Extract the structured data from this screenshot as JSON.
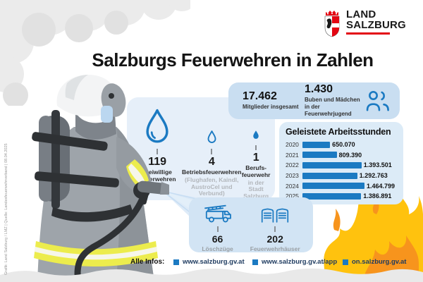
{
  "title": "Salzburgs Feuerwehren in Zahlen",
  "logo": {
    "line1": "LAND",
    "line2": "SALZBURG"
  },
  "credit": "Grafik: Land Salzburg / LMZ  |  Quelle: Landesfeuerwehrverband  |  08.04.2025",
  "stats": {
    "members_value": "17.462",
    "members_label": "Mitglieder insgesamt",
    "youth_value": "1.430",
    "youth_label_1": "Buben und Mädchen",
    "youth_label_2": "in der Feuerwehrjugend"
  },
  "departments": [
    {
      "value": "119",
      "label": "Freiwillige Feuerwehren",
      "sublabel": ""
    },
    {
      "value": "4",
      "label": "Betriebsfeuerwehren",
      "sublabel": "(Flughafen, Kaindl, AustroCel und Verbund)"
    },
    {
      "value": "1",
      "label": "Berufs-feuerwehr",
      "sublabel": "in der Stadt Salzburg"
    }
  ],
  "chart_data": {
    "type": "bar",
    "orientation": "horizontal",
    "title": "Geleistete Arbeitsstunden",
    "categories": [
      "2020",
      "2021",
      "2022",
      "2023",
      "2024",
      "2025"
    ],
    "values": [
      650070,
      809390,
      1393501,
      1292763,
      1464799,
      1386891
    ],
    "value_labels": [
      "650.070",
      "809.390",
      "1.393.501",
      "1.292.763",
      "1.464.799",
      "1.386.891"
    ],
    "xlim": [
      0,
      1464799
    ],
    "bar_color": "#1B7AC2",
    "grid": false,
    "legend": "none"
  },
  "equipment": [
    {
      "value": "66",
      "label": "Löschzüge"
    },
    {
      "value": "202",
      "label": "Feuerwehrhäuser"
    }
  ],
  "footer": {
    "heading": "Alle Infos:",
    "links": [
      "www.salzburg.gv.at",
      "www.salzburg.gv.at/app",
      "on.salzburg.gv.at"
    ]
  },
  "colors": {
    "accent_blue": "#1B7AC2",
    "panel_light_blue": "#E6EFF9",
    "panel_mid_blue": "#C9DEF1",
    "chart_panel_blue": "#DCEBF7",
    "flame_yellow": "#FFC20E",
    "flame_orange": "#F7941D",
    "brand_red": "#E30613",
    "link_navy": "#1D3A5F"
  }
}
